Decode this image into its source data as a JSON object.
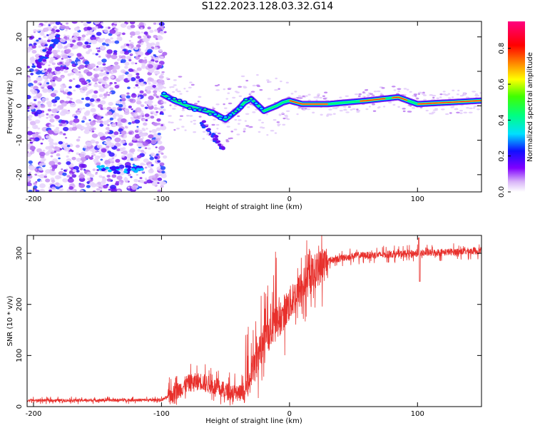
{
  "title": "S122.2023.128.03.32.G14",
  "chart_data": [
    {
      "type": "heatmap",
      "xlabel": "Height of straight line (km)",
      "ylabel": "Frequency (Hz)",
      "xlim": [
        -205,
        150
      ],
      "ylim": [
        -25,
        24.5
      ],
      "xticks": [
        -200,
        -100,
        0,
        100
      ],
      "yticks": [
        -20,
        -10,
        0,
        10,
        20
      ],
      "ridge": [
        {
          "x": -100,
          "y": 3.5
        },
        {
          "x": -90,
          "y": 1.5
        },
        {
          "x": -80,
          "y": 0
        },
        {
          "x": -70,
          "y": -1
        },
        {
          "x": -60,
          "y": -2
        },
        {
          "x": -50,
          "y": -4
        },
        {
          "x": -40,
          "y": -1
        },
        {
          "x": -35,
          "y": 1
        },
        {
          "x": -30,
          "y": 2
        },
        {
          "x": -20,
          "y": -1.5
        },
        {
          "x": -10,
          "y": 0
        },
        {
          "x": -5,
          "y": 1
        },
        {
          "x": 0,
          "y": 1.5
        },
        {
          "x": 10,
          "y": 0.5
        },
        {
          "x": 30,
          "y": 0.5
        },
        {
          "x": 60,
          "y": 1.5
        },
        {
          "x": 85,
          "y": 2.5
        },
        {
          "x": 100,
          "y": 0.5
        },
        {
          "x": 150,
          "y": 1.5
        }
      ],
      "colorbar": {
        "label": "Normalized spectral amplitude",
        "range": [
          0,
          0.95
        ],
        "ticks": [
          0.0,
          0.2,
          0.4,
          0.6,
          0.8
        ]
      }
    },
    {
      "type": "line",
      "xlabel": "Height of straight line (km)",
      "ylabel": "SNR (10 * v/v)",
      "xlim": [
        -205,
        150
      ],
      "ylim": [
        0,
        335
      ],
      "xticks": [
        -200,
        -100,
        0,
        100
      ],
      "yticks": [
        0,
        100,
        200,
        300
      ],
      "series_color": "#e8302c",
      "baseline": [
        {
          "x": -205,
          "y": 12
        },
        {
          "x": -100,
          "y": 13
        },
        {
          "x": -90,
          "y": 25
        },
        {
          "x": -80,
          "y": 45
        },
        {
          "x": -70,
          "y": 50
        },
        {
          "x": -60,
          "y": 40
        },
        {
          "x": -50,
          "y": 30
        },
        {
          "x": -35,
          "y": 25
        },
        {
          "x": -30,
          "y": 60
        },
        {
          "x": -20,
          "y": 130
        },
        {
          "x": -10,
          "y": 165
        },
        {
          "x": 0,
          "y": 200
        },
        {
          "x": 10,
          "y": 235
        },
        {
          "x": 20,
          "y": 265
        },
        {
          "x": 30,
          "y": 285
        },
        {
          "x": 50,
          "y": 295
        },
        {
          "x": 100,
          "y": 300
        },
        {
          "x": 150,
          "y": 305
        }
      ]
    }
  ]
}
